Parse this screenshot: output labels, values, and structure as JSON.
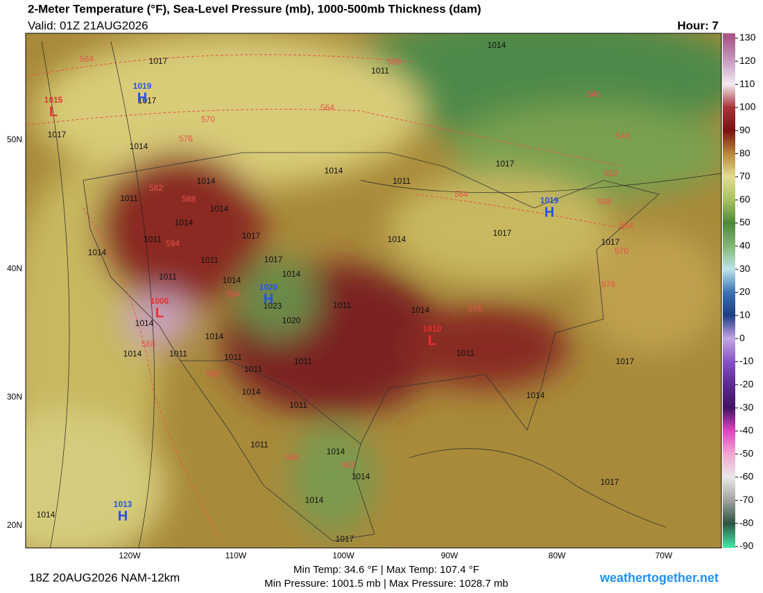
{
  "header": {
    "title": "2-Meter Temperature (°F), Sea-Level Pressure (mb), 1000-500mb Thickness (dam)",
    "valid": "Valid: 01Z 21AUG2026",
    "hour": "Hour: 7"
  },
  "footer": {
    "run": "18Z 20AUG2026 NAM-12km",
    "temp_stats": "Min Temp:  34.6 °F | Max Temp: 107.4 °F",
    "pressure_stats": "Min Pressure: 1001.5 mb | Max Pressure: 1028.7 mb",
    "site": "weathertogether.net"
  },
  "map": {
    "lon_labels": [
      "120W",
      "110W",
      "100W",
      "90W",
      "80W",
      "70W"
    ],
    "lat_labels": [
      "50N",
      "40N",
      "30N",
      "20N"
    ],
    "pressure_centers": [
      {
        "letter": "H",
        "value": "1019"
      },
      {
        "letter": "L",
        "value": "1015"
      },
      {
        "letter": "H",
        "value": "1019"
      },
      {
        "letter": "H",
        "value": "1020"
      },
      {
        "letter": "L",
        "value": "1006"
      },
      {
        "letter": "L",
        "value": "1010"
      },
      {
        "letter": "H",
        "value": "1013"
      }
    ],
    "isobar_labels": [
      "1017",
      "1014",
      "1011",
      "1017",
      "1017",
      "1014",
      "1014",
      "1011",
      "1017",
      "1014",
      "1011",
      "1014",
      "1014",
      "1017",
      "1014",
      "1017",
      "1017",
      "1011",
      "1014",
      "1011",
      "1017",
      "1014",
      "1011",
      "1014",
      "1023",
      "1011",
      "1014",
      "1020",
      "1014",
      "1014",
      "1014",
      "1011",
      "1011",
      "1011",
      "1011",
      "1017",
      "1011",
      "1014",
      "1014",
      "1011",
      "1011",
      "1014",
      "1014",
      "1014",
      "1017",
      "1017",
      "1014"
    ],
    "thickness_labels": [
      "564",
      "558",
      "564",
      "570",
      "576",
      "546",
      "546",
      "552",
      "582",
      "588",
      "564",
      "558",
      "564",
      "594",
      "570",
      "576",
      "594",
      "576",
      "588",
      "588",
      "588",
      "582"
    ]
  },
  "colorbar": {
    "ticks": [
      130,
      120,
      110,
      100,
      90,
      80,
      70,
      60,
      50,
      40,
      30,
      20,
      10,
      0,
      -10,
      -20,
      -30,
      -40,
      -50,
      -60,
      -70,
      -80,
      -90
    ],
    "colors": [
      "#a85a8c",
      "#c89cc0",
      "#f2eaf2",
      "#a8323a",
      "#7a1212",
      "#b88838",
      "#e4dc90",
      "#a8c25e",
      "#4c8a3a",
      "#84b674",
      "#bce4ea",
      "#3c72b2",
      "#1c3c82",
      "#c4a6e4",
      "#8452c4",
      "#5a2a92",
      "#421262",
      "#e244c2",
      "#f2a6d2",
      "#e8e8e8",
      "#a2a2a2",
      "#2e5442",
      "#44e2a2"
    ]
  }
}
